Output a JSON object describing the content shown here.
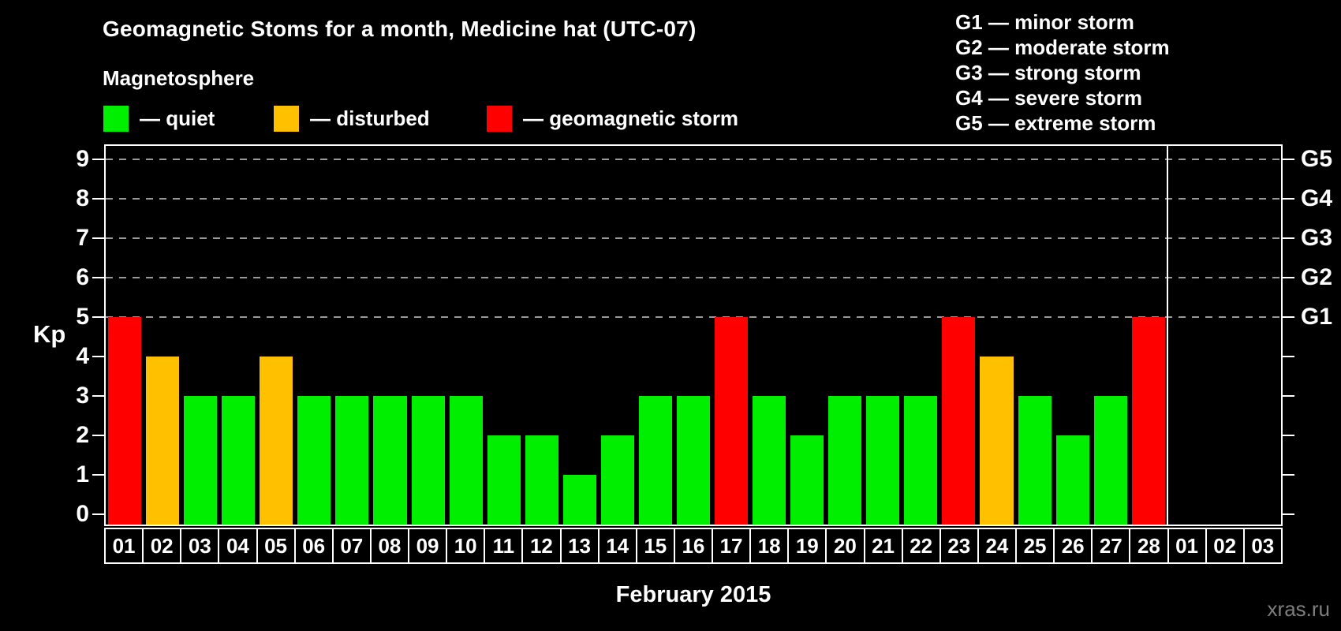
{
  "header": {
    "title": "Geomagnetic Stoms for a month, Medicine hat (UTC-07)",
    "legend_heading": "Magnetosphere",
    "legend_items": [
      {
        "key": "quiet",
        "label": "— quiet",
        "color": "#00ee00"
      },
      {
        "key": "disturbed",
        "label": "— disturbed",
        "color": "#ffc000"
      },
      {
        "key": "storm",
        "label": "— geomagnetic storm",
        "color": "#ff0000"
      }
    ],
    "storm_scale": [
      {
        "label": "G1 — minor storm"
      },
      {
        "label": "G2 — moderate storm"
      },
      {
        "label": "G3 — strong storm"
      },
      {
        "label": "G4 — severe storm"
      },
      {
        "label": "G5 — extreme storm"
      }
    ]
  },
  "chart_data": {
    "type": "bar",
    "title": "Geomagnetic Stoms for a month, Medicine hat (UTC-07)",
    "xlabel": "February 2015",
    "ylabel": "Kp",
    "ylim": [
      0,
      9
    ],
    "yticks": [
      0,
      1,
      2,
      3,
      4,
      5,
      6,
      7,
      8,
      9
    ],
    "gridlines_at": [
      5,
      6,
      7,
      8,
      9
    ],
    "grid": "dashed-horizontal-at-storm-levels-only",
    "legend_position": "top-left",
    "right_axis_labels": {
      "5": "G1",
      "6": "G2",
      "7": "G3",
      "8": "G4",
      "9": "G5"
    },
    "categories": [
      "01",
      "02",
      "03",
      "04",
      "05",
      "06",
      "07",
      "08",
      "09",
      "10",
      "11",
      "12",
      "13",
      "14",
      "15",
      "16",
      "17",
      "18",
      "19",
      "20",
      "21",
      "22",
      "23",
      "24",
      "25",
      "26",
      "27",
      "28",
      "01",
      "02",
      "03"
    ],
    "month_separator_after_index": 27,
    "values": [
      5,
      4,
      3,
      3,
      4,
      3,
      3,
      3,
      3,
      3,
      2,
      2,
      1,
      2,
      3,
      3,
      5,
      3,
      2,
      3,
      3,
      3,
      5,
      4,
      3,
      2,
      3,
      5,
      null,
      null,
      null
    ],
    "statuses": [
      "storm",
      "disturbed",
      "quiet",
      "quiet",
      "disturbed",
      "quiet",
      "quiet",
      "quiet",
      "quiet",
      "quiet",
      "quiet",
      "quiet",
      "quiet",
      "quiet",
      "quiet",
      "quiet",
      "storm",
      "quiet",
      "quiet",
      "quiet",
      "quiet",
      "quiet",
      "storm",
      "disturbed",
      "quiet",
      "quiet",
      "quiet",
      "storm",
      null,
      null,
      null
    ],
    "status_colors": {
      "quiet": "#00ee00",
      "disturbed": "#ffc000",
      "storm": "#ff0000"
    }
  },
  "footer": {
    "xaxis_title": "February 2015",
    "watermark": "xras.ru"
  }
}
